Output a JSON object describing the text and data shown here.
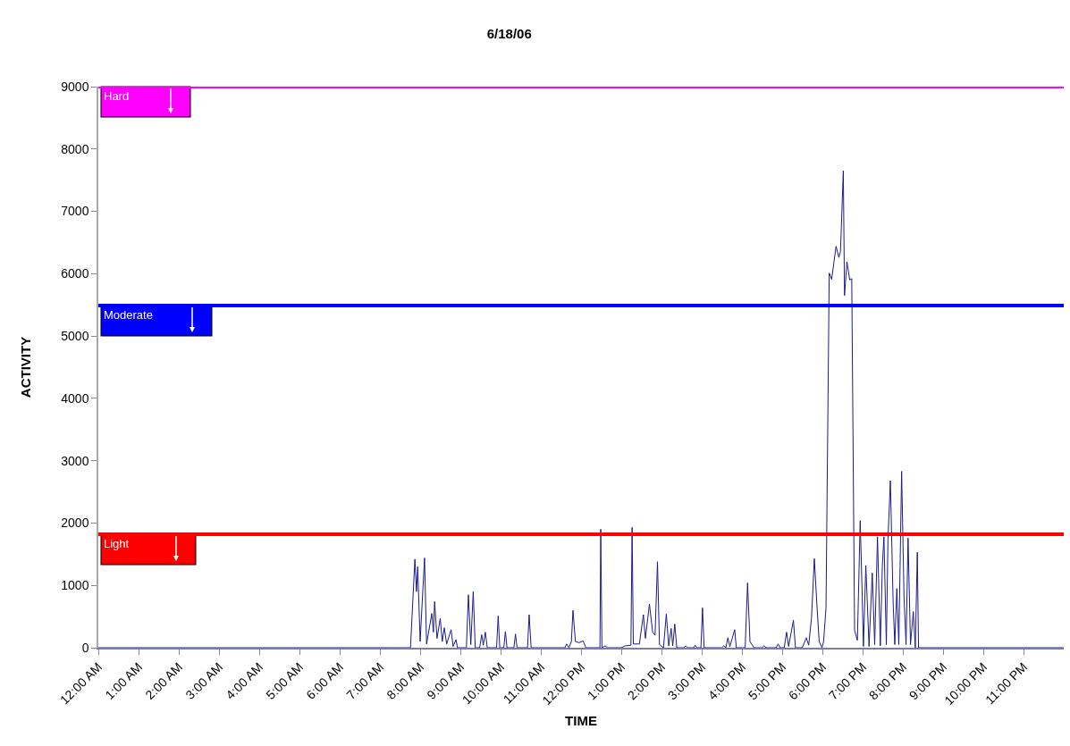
{
  "chart_data": {
    "type": "line",
    "title": "6/18/06",
    "xlabel": "TIME",
    "ylabel": "ACTIVITY",
    "xlim": [
      0,
      24
    ],
    "ylim": [
      0,
      9000
    ],
    "xticks": [
      {
        "value": 0,
        "label": "12:00 AM"
      },
      {
        "value": 1,
        "label": "1:00 AM"
      },
      {
        "value": 2,
        "label": "2:00 AM"
      },
      {
        "value": 3,
        "label": "3:00 AM"
      },
      {
        "value": 4,
        "label": "4:00 AM"
      },
      {
        "value": 5,
        "label": "5:00 AM"
      },
      {
        "value": 6,
        "label": "6:00 AM"
      },
      {
        "value": 7,
        "label": "7:00 AM"
      },
      {
        "value": 8,
        "label": "8:00 AM"
      },
      {
        "value": 9,
        "label": "9:00 AM"
      },
      {
        "value": 10,
        "label": "10:00 AM"
      },
      {
        "value": 11,
        "label": "11:00 AM"
      },
      {
        "value": 12,
        "label": "12:00 PM"
      },
      {
        "value": 13,
        "label": "1:00 PM"
      },
      {
        "value": 14,
        "label": "2:00 PM"
      },
      {
        "value": 15,
        "label": "3:00 PM"
      },
      {
        "value": 16,
        "label": "4:00 PM"
      },
      {
        "value": 17,
        "label": "5:00 PM"
      },
      {
        "value": 18,
        "label": "6:00 PM"
      },
      {
        "value": 19,
        "label": "7:00 PM"
      },
      {
        "value": 20,
        "label": "8:00 PM"
      },
      {
        "value": 21,
        "label": "9:00 PM"
      },
      {
        "value": 22,
        "label": "10:00 PM"
      },
      {
        "value": 23,
        "label": "11:00 PM"
      }
    ],
    "yticks": [
      0,
      1000,
      2000,
      3000,
      4000,
      5000,
      6000,
      7000,
      8000,
      9000
    ],
    "grid": false,
    "marker": "none",
    "line_style": "solid",
    "ref_lines": [
      {
        "axis": "y",
        "value": 9000,
        "label": "Hard",
        "color": "#ff00ff"
      },
      {
        "axis": "y",
        "value": 5490,
        "label": "Moderate",
        "color": "#0000ff"
      },
      {
        "axis": "y",
        "value": 1820,
        "label": "Light",
        "color": "#ff0000"
      }
    ],
    "series": [
      {
        "color": "#1a1a8c",
        "x": [
          0,
          7.76,
          7.87,
          7.91,
          7.94,
          8.0,
          8.11,
          8.16,
          8.29,
          8.33,
          8.36,
          8.42,
          8.5,
          8.55,
          8.6,
          8.66,
          8.77,
          8.82,
          8.89,
          8.93,
          9.15,
          9.2,
          9.26,
          9.32,
          9.37,
          9.48,
          9.53,
          9.57,
          9.62,
          9.67,
          9.9,
          9.94,
          9.98,
          10.08,
          10.12,
          10.16,
          10.33,
          10.37,
          10.41,
          10.67,
          10.71,
          10.76,
          11.6,
          11.64,
          11.7,
          11.76,
          11.8,
          11.86,
          11.95,
          12.05,
          12.12,
          12.47,
          12.49,
          12.52,
          12.6,
          12.66,
          13.0,
          13.1,
          13.24,
          13.27,
          13.3,
          13.45,
          13.55,
          13.6,
          13.7,
          13.78,
          13.84,
          13.9,
          13.95,
          14.05,
          14.12,
          14.18,
          14.24,
          14.28,
          14.33,
          14.38,
          14.55,
          14.6,
          14.66,
          14.8,
          14.84,
          14.88,
          14.98,
          15.02,
          15.06,
          15.5,
          15.55,
          15.6,
          15.65,
          15.7,
          15.82,
          15.86,
          16.08,
          16.14,
          16.2,
          16.3,
          16.5,
          16.55,
          16.6,
          16.85,
          16.9,
          16.95,
          17.05,
          17.11,
          17.16,
          17.28,
          17.33,
          17.5,
          17.6,
          17.66,
          17.73,
          17.8,
          17.86,
          17.92,
          17.99,
          18.03,
          18.09,
          18.17,
          18.23,
          18.34,
          18.41,
          18.45,
          18.52,
          18.55,
          18.61,
          18.68,
          18.73,
          18.8,
          18.87,
          18.94,
          18.99,
          19.02,
          19.08,
          19.16,
          19.24,
          19.3,
          19.37,
          19.44,
          19.49,
          19.53,
          19.59,
          19.63,
          19.69,
          19.76,
          19.8,
          19.85,
          19.9,
          19.97,
          20.03,
          20.08,
          20.13,
          20.19,
          20.26,
          20.31,
          20.36,
          20.39,
          24
        ],
        "values": [
          0,
          0,
          1420,
          900,
          1300,
          100,
          1440,
          60,
          550,
          250,
          740,
          150,
          470,
          100,
          320,
          60,
          290,
          20,
          130,
          0,
          0,
          850,
          50,
          900,
          0,
          0,
          210,
          40,
          250,
          0,
          0,
          510,
          0,
          0,
          260,
          0,
          0,
          220,
          0,
          0,
          530,
          0,
          0,
          60,
          0,
          100,
          600,
          100,
          80,
          110,
          0,
          0,
          1900,
          0,
          30,
          0,
          0,
          30,
          40,
          1930,
          60,
          60,
          530,
          150,
          700,
          250,
          200,
          1380,
          50,
          0,
          540,
          30,
          310,
          30,
          380,
          0,
          0,
          30,
          0,
          0,
          40,
          0,
          0,
          640,
          0,
          0,
          30,
          0,
          160,
          20,
          290,
          0,
          0,
          1040,
          100,
          0,
          0,
          30,
          0,
          0,
          60,
          0,
          0,
          250,
          20,
          440,
          0,
          0,
          160,
          40,
          480,
          1430,
          730,
          100,
          0,
          100,
          640,
          6010,
          5910,
          6440,
          6260,
          6360,
          7650,
          5650,
          6190,
          5900,
          5920,
          280,
          120,
          2040,
          830,
          20,
          1320,
          20,
          1200,
          50,
          1780,
          30,
          1300,
          1780,
          50,
          1730,
          2680,
          700,
          50,
          950,
          50,
          2830,
          800,
          50,
          1760,
          50,
          580,
          0,
          1530,
          0,
          0
        ]
      }
    ]
  }
}
